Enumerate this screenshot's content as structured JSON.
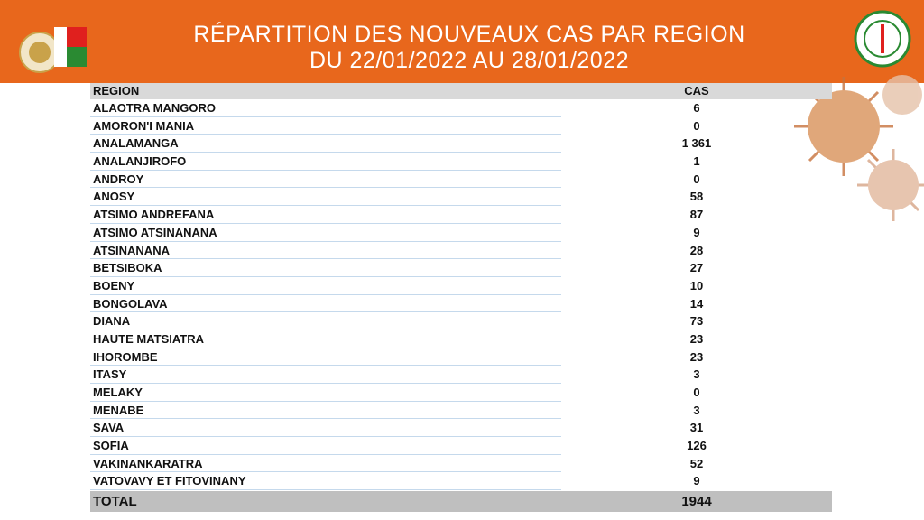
{
  "header": {
    "title_lines": [
      "RÉPARTITION DES NOUVEAUX CAS PAR REGION",
      "DU 22/01/2022 AU 28/01/2022"
    ]
  },
  "table": {
    "columns": [
      "REGION",
      "CAS"
    ],
    "rows": [
      [
        "ALAOTRA MANGORO",
        "6"
      ],
      [
        "AMORON'I MANIA",
        "0"
      ],
      [
        "ANALAMANGA",
        "1 361"
      ],
      [
        "ANALANJIROFO",
        "1"
      ],
      [
        "ANDROY",
        "0"
      ],
      [
        "ANOSY",
        "58"
      ],
      [
        "ATSIMO ANDREFANA",
        "87"
      ],
      [
        "ATSIMO ATSINANANA",
        "9"
      ],
      [
        "ATSINANANA",
        "28"
      ],
      [
        "BETSIBOKA",
        "27"
      ],
      [
        "BOENY",
        "10"
      ],
      [
        "BONGOLAVA",
        "14"
      ],
      [
        "DIANA",
        "73"
      ],
      [
        "HAUTE MATSIATRA",
        "23"
      ],
      [
        "IHOROMBE",
        "23"
      ],
      [
        "ITASY",
        "3"
      ],
      [
        "MELAKY",
        "0"
      ],
      [
        "MENABE",
        "3"
      ],
      [
        "SAVA",
        "31"
      ],
      [
        "SOFIA",
        "126"
      ],
      [
        "VAKINANKARATRA",
        "52"
      ],
      [
        "VATOVAVY ET FITOVINANY",
        "9"
      ]
    ],
    "total": [
      "TOTAL",
      "1944"
    ]
  }
}
